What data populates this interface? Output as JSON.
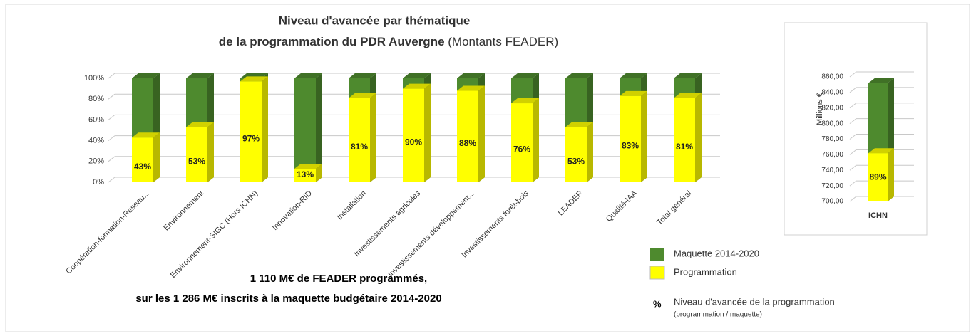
{
  "chart_data": [
    {
      "type": "bar3d",
      "title": "Niveau d'avancée par thématique",
      "title_line2": "de la programmation du PDR Auvergne",
      "title_suffix": "(Montants FEADER)",
      "categories": [
        "Coopération-formation-Réseau...",
        "Environnement",
        "Environnement-SIGC (Hors ICHN)",
        "Innovation-RID",
        "Installation",
        "Investissements agricoles",
        "Investissements développement...",
        "Investissements forêt-bois",
        "LEADER",
        "Qualité-IAA",
        "Total général"
      ],
      "series": [
        {
          "name": "Maquette 2014-2020",
          "color": "#4e8a2e",
          "values": [
            100,
            100,
            100,
            100,
            100,
            100,
            100,
            100,
            100,
            100,
            100
          ]
        },
        {
          "name": "Programmation",
          "color": "#ffff00",
          "values": [
            43,
            53,
            97,
            13,
            81,
            90,
            88,
            76,
            53,
            83,
            81
          ],
          "value_labels": [
            "43%",
            "53%",
            "97%",
            "13%",
            "81%",
            "90%",
            "88%",
            "76%",
            "53%",
            "83%",
            "81%"
          ]
        }
      ],
      "ylim": [
        0,
        100
      ],
      "yticks": [
        {
          "value": 0,
          "label": "0%"
        },
        {
          "value": 20,
          "label": "20%"
        },
        {
          "value": 40,
          "label": "40%"
        },
        {
          "value": 60,
          "label": "60%"
        },
        {
          "value": 80,
          "label": "80%"
        },
        {
          "value": 100,
          "label": "100%"
        }
      ],
      "grid": true,
      "legend_symbol": "%",
      "legend_note": "Niveau d'avancée de la programmation",
      "legend_note_detail": "(programmation / maquette)",
      "annotations": [
        "1 110 M€ de FEADER programmés,",
        "sur les 1 286 M€ inscrits à la maquette budgétaire 2014-2020"
      ]
    },
    {
      "type": "bar3d",
      "categories": [
        "ICHN"
      ],
      "ylabel": "Millions €",
      "series": [
        {
          "name": "Maquette 2014-2020",
          "color": "#4e8a2e",
          "values": [
            852
          ]
        },
        {
          "name": "Programmation",
          "color": "#ffff00",
          "values": [
            762
          ],
          "ratio_labels": [
            "89%"
          ]
        }
      ],
      "ylim": [
        700,
        860
      ],
      "yticks": [
        {
          "value": 700,
          "label": "700,00"
        },
        {
          "value": 720,
          "label": "720,00"
        },
        {
          "value": 740,
          "label": "740,00"
        },
        {
          "value": 760,
          "label": "760,00"
        },
        {
          "value": 780,
          "label": "780,00"
        },
        {
          "value": 800,
          "label": "800,00"
        },
        {
          "value": 820,
          "label": "820,00"
        },
        {
          "value": 840,
          "label": "840,00"
        },
        {
          "value": 860,
          "label": "860,00"
        }
      ],
      "grid": true
    }
  ]
}
